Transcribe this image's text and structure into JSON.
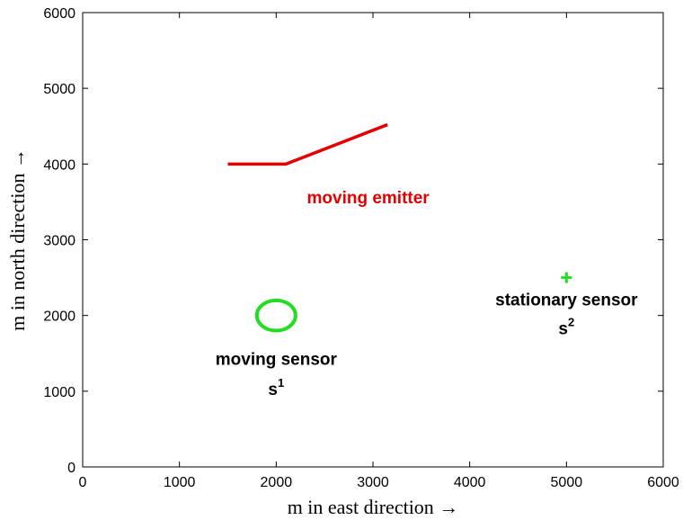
{
  "chart_data": {
    "type": "line",
    "xlabel": "m in east direction →",
    "ylabel": "m in north direction →",
    "xlim": [
      0,
      6000
    ],
    "ylim": [
      0,
      6000
    ],
    "xticks": [
      0,
      1000,
      2000,
      3000,
      4000,
      5000,
      6000
    ],
    "yticks": [
      0,
      1000,
      2000,
      3000,
      4000,
      5000,
      6000
    ],
    "grid": false,
    "series": [
      {
        "id": "emitter",
        "color": "#e30000",
        "points": [
          [
            1500,
            4000
          ],
          [
            2100,
            4000
          ],
          [
            3150,
            4520
          ]
        ]
      },
      {
        "id": "moving-sensor-path",
        "shape": "ellipse",
        "color": "#22dd22",
        "center": [
          2000,
          2000
        ],
        "radius_x": 200,
        "radius_y": 200
      },
      {
        "id": "stationary-sensor",
        "shape": "plus-marker",
        "color": "#22dd22",
        "point": [
          5000,
          2500
        ]
      }
    ],
    "annotations": [
      {
        "id": "emitter-label",
        "text": "moving emitter",
        "x": 2950,
        "y": 3480,
        "color": "#e30000"
      },
      {
        "id": "moving-sensor-label",
        "text": "moving sensor",
        "x": 2000,
        "y": 1350,
        "color": "#000000"
      },
      {
        "id": "moving-sensor-symbol",
        "text": "s",
        "sup": "1",
        "x": 2000,
        "y": 950,
        "color": "#000000"
      },
      {
        "id": "stationary-sensor-label",
        "text": "stationary sensor",
        "x": 5000,
        "y": 2130,
        "color": "#000000"
      },
      {
        "id": "stationary-sensor-symbol",
        "text": "s",
        "sup": "2",
        "x": 5000,
        "y": 1750,
        "color": "#000000"
      }
    ]
  }
}
